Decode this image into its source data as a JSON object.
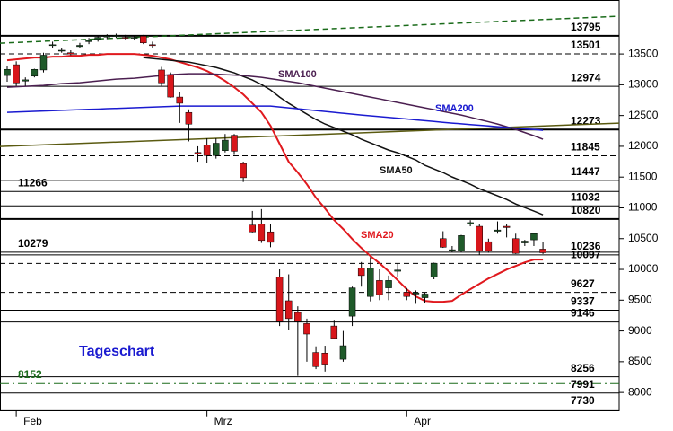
{
  "chart_data": {
    "type": "candlestick",
    "annotation": "Tageschart",
    "categories": [
      null,
      "Feb",
      null,
      null,
      null,
      null,
      null,
      null,
      null,
      null,
      null,
      null,
      null,
      null,
      null,
      null,
      null,
      null,
      null,
      null,
      null,
      null,
      "Mrz",
      null,
      null,
      null,
      null,
      null,
      null,
      null,
      null,
      null,
      null,
      null,
      null,
      null,
      null,
      null,
      null,
      null,
      null,
      null,
      null,
      null,
      "Apr",
      null,
      null,
      null,
      null,
      null,
      null,
      null,
      null,
      null,
      null,
      null,
      null,
      null,
      null,
      null
    ],
    "open": [
      13150,
      13325,
      13060,
      13140,
      13240,
      13640,
      13550,
      13520,
      13620,
      13700,
      13740,
      13780,
      13790,
      13770,
      13760,
      13790,
      13650,
      13240,
      13160,
      12800,
      12550,
      11900,
      12020,
      11850,
      11930,
      12180,
      11720,
      10720,
      10740,
      10610,
      9880,
      9490,
      9300,
      9120,
      8650,
      8640,
      9080,
      8540,
      9240,
      10020,
      9560,
      9820,
      9700,
      9970,
      9630,
      9600,
      9540,
      9880,
      10500,
      10320,
      10300,
      10740,
      10700,
      10450,
      10620,
      10700,
      10500,
      10430,
      10480,
      10330
    ],
    "high": [
      13300,
      13380,
      13120,
      13260,
      13520,
      13700,
      13600,
      13560,
      13680,
      13760,
      13800,
      13820,
      13830,
      13810,
      13800,
      13810,
      13700,
      13290,
      13200,
      12880,
      12600,
      12000,
      12130,
      12130,
      12200,
      12200,
      11750,
      10950,
      10980,
      10730,
      10000,
      9920,
      9400,
      9200,
      8750,
      8760,
      9180,
      9000,
      9720,
      10120,
      10200,
      10000,
      9900,
      10100,
      9700,
      9660,
      9620,
      10110,
      10620,
      10380,
      10560,
      10800,
      10740,
      10500,
      10780,
      10740,
      10580,
      10480,
      10580,
      10450
    ],
    "low": [
      13050,
      12980,
      12980,
      13120,
      13200,
      13600,
      13520,
      13480,
      13600,
      13660,
      13700,
      13740,
      13760,
      13740,
      13720,
      13660,
      13600,
      12980,
      12790,
      12380,
      12080,
      11750,
      11730,
      11800,
      11900,
      11860,
      11420,
      10600,
      10430,
      10360,
      9080,
      9020,
      8270,
      8500,
      8380,
      8340,
      8880,
      8500,
      9080,
      9720,
      9480,
      9500,
      9500,
      9880,
      9500,
      9440,
      9460,
      9840,
      10350,
      10280,
      10280,
      10700,
      10240,
      10270,
      10580,
      10520,
      10250,
      10380,
      10380,
      10250
    ],
    "close": [
      13250,
      13030,
      13080,
      13250,
      13480,
      13650,
      13560,
      13500,
      13640,
      13720,
      13770,
      13790,
      13800,
      13760,
      13770,
      13680,
      13640,
      13030,
      12800,
      12700,
      12360,
      11880,
      11850,
      12050,
      12100,
      11920,
      11490,
      10610,
      10470,
      10440,
      9150,
      9200,
      9150,
      8950,
      8420,
      8460,
      8880,
      8760,
      9700,
      9900,
      10020,
      9590,
      9820,
      9990,
      9560,
      9620,
      9600,
      10100,
      10360,
      10320,
      10550,
      10760,
      10300,
      10300,
      10640,
      10680,
      10260,
      10460,
      10580,
      10270
    ],
    "up_color": "#1f5a2a",
    "down_color": "#d8161b",
    "series": [
      {
        "name": "SMA20",
        "color": "#e0191e",
        "values": [
          13398,
          13412,
          13427,
          13442,
          13442,
          13456,
          13456,
          13471,
          13471,
          13485,
          13485,
          13500,
          13500,
          13500,
          13500,
          13485,
          13471,
          13442,
          13412,
          13369,
          13325,
          13281,
          13223,
          13150,
          13062,
          12960,
          12843,
          12698,
          12552,
          12333,
          12041,
          11749,
          11574,
          11384,
          11165,
          10990,
          10801,
          10655,
          10494,
          10348,
          10217,
          10100,
          9969,
          9824,
          9678,
          9561,
          9488,
          9473,
          9473,
          9488,
          9590,
          9678,
          9765,
          9852,
          9925,
          9998,
          10056,
          10115,
          10159,
          10159
        ]
      },
      {
        "name": "SMA50",
        "color": "#111111",
        "values": [
          null,
          null,
          null,
          null,
          null,
          null,
          null,
          null,
          null,
          null,
          null,
          null,
          null,
          null,
          null,
          13442,
          13427,
          13412,
          13398,
          13383,
          13369,
          13340,
          13310,
          13281,
          13237,
          13194,
          13135,
          13077,
          13004,
          12916,
          12800,
          12698,
          12610,
          12523,
          12435,
          12362,
          12304,
          12245,
          12187,
          12114,
          12056,
          11997,
          11939,
          11895,
          11837,
          11778,
          11691,
          11632,
          11574,
          11501,
          11443,
          11384,
          11311,
          11253,
          11195,
          11136,
          11063,
          11005,
          10947,
          10888
        ]
      },
      {
        "name": "SMA100",
        "color": "#4b1f50",
        "values": [
          12960,
          12968,
          12975,
          12982,
          12989,
          13004,
          13019,
          13026,
          13033,
          13048,
          13062,
          13077,
          13092,
          13099,
          13106,
          13121,
          13135,
          13150,
          13164,
          13172,
          13179,
          13179,
          13179,
          13172,
          13164,
          13157,
          13150,
          13135,
          13121,
          13099,
          13077,
          13055,
          13033,
          13004,
          12975,
          12945,
          12916,
          12887,
          12858,
          12829,
          12800,
          12771,
          12741,
          12712,
          12683,
          12654,
          12625,
          12596,
          12566,
          12537,
          12508,
          12472,
          12435,
          12399,
          12362,
          12318,
          12274,
          12223,
          12172,
          12114
        ]
      },
      {
        "name": "SMA200",
        "color": "#1a1ad0",
        "values": [
          12552,
          12557,
          12563,
          12568,
          12573,
          12579,
          12584,
          12589,
          12595,
          12600,
          12605,
          12611,
          12616,
          12621,
          12627,
          12632,
          12638,
          12643,
          12648,
          12654,
          12654,
          12654,
          12654,
          12654,
          12654,
          12654,
          12654,
          12654,
          12654,
          12654,
          12639,
          12625,
          12610,
          12595,
          12581,
          12566,
          12552,
          12537,
          12523,
          12508,
          12495,
          12482,
          12469,
          12456,
          12443,
          12430,
          12417,
          12403,
          12390,
          12377,
          12365,
          12353,
          12342,
          12330,
          12318,
          12307,
          12295,
          12283,
          12272,
          12260
        ]
      }
    ],
    "trendlines": [
      {
        "color": "#1a6b1a",
        "dashed": true,
        "values": [
          13675,
          14113
        ]
      },
      {
        "color": "#5a5a10",
        "dashed": false,
        "values": [
          11997,
          12377
        ]
      }
    ],
    "levels": [
      {
        "value": 13795,
        "side": "right",
        "style": "solid",
        "bold": true
      },
      {
        "value": 13501,
        "side": "right",
        "style": "dashed",
        "bold": false
      },
      {
        "value": 12974,
        "side": "right",
        "style": "solid",
        "bold": false
      },
      {
        "value": 12273,
        "side": "right",
        "style": "solid",
        "bold": true
      },
      {
        "value": 11845,
        "side": "right",
        "style": "dashed",
        "bold": false
      },
      {
        "value": 11447,
        "side": "right",
        "style": "solid",
        "bold": false
      },
      {
        "value": 11266,
        "side": "left",
        "style": "solid",
        "bold": false
      },
      {
        "value": 11032,
        "side": "right",
        "style": "solid",
        "bold": false
      },
      {
        "value": 10820,
        "side": "right",
        "style": "solid",
        "bold": true
      },
      {
        "value": 10279,
        "side": "left",
        "style": "solid",
        "bold": false
      },
      {
        "value": 10236,
        "side": "right",
        "style": "solid",
        "bold": false
      },
      {
        "value": 10097,
        "side": "right",
        "style": "dashed",
        "bold": false
      },
      {
        "value": 9627,
        "side": "right",
        "style": "dashed",
        "bold": false
      },
      {
        "value": 9337,
        "side": "right",
        "style": "solid",
        "bold": false
      },
      {
        "value": 9146,
        "side": "right",
        "style": "solid",
        "bold": false
      },
      {
        "value": 8256,
        "side": "right",
        "style": "solid",
        "bold": false
      },
      {
        "value": 8152,
        "side": "left",
        "style": "dashdot",
        "bold": true,
        "color": "#1a6b1a"
      },
      {
        "value": 7991,
        "side": "right",
        "style": "solid",
        "bold": false
      },
      {
        "value": 7730,
        "side": "right",
        "style": "solid",
        "bold": false
      }
    ],
    "ylim": [
      7700,
      14260
    ],
    "yticks": [
      8000,
      8500,
      9000,
      9500,
      10000,
      10500,
      11000,
      11500,
      12000,
      12500,
      13000,
      13500
    ]
  }
}
